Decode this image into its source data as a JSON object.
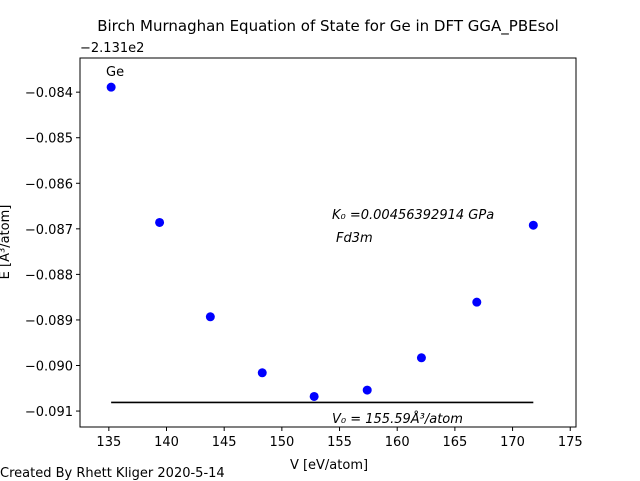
{
  "chart_data": {
    "type": "scatter",
    "title": "Birch Murnaghan Equation of State for Ge in DFT GGA_PBEsol",
    "xlabel": "V  [eV/atom]",
    "ylabel": "E  [Å³/atom]",
    "y_offset_label": "−2.131e2",
    "xlim": [
      132.5,
      175.5
    ],
    "ylim": [
      -0.09135,
      -0.08325
    ],
    "xticks": [
      135,
      140,
      145,
      150,
      155,
      160,
      165,
      170,
      175
    ],
    "yticks": [
      -0.084,
      -0.085,
      -0.086,
      -0.087,
      -0.088,
      -0.089,
      -0.09,
      -0.091
    ],
    "ytick_labels": [
      "−0.084",
      "−0.085",
      "−0.086",
      "−0.087",
      "−0.088",
      "−0.089",
      "−0.090",
      "−0.091"
    ],
    "series": [
      {
        "color": "#0000ff",
        "x": [
          135.2,
          139.4,
          143.8,
          148.3,
          152.8,
          157.4,
          162.1,
          166.9,
          171.8
        ],
        "y": [
          -0.08389,
          -0.08686,
          -0.08893,
          -0.09016,
          -0.09068,
          -0.09054,
          -0.08983,
          -0.08861,
          -0.08692
        ]
      }
    ],
    "reference_line": {
      "color": "#000000",
      "x": [
        135.2,
        171.8
      ],
      "y": -0.09081
    },
    "grid": false,
    "annotations": {
      "element": "Ge",
      "bulk_modulus": "K₀ =0.00456392914 GPa",
      "space_group": "Fd3m",
      "volume": "V₀ = 155.59Å³/atom"
    }
  },
  "footer": {
    "credit": "Created By Rhett Kliger 2020-5-14"
  }
}
